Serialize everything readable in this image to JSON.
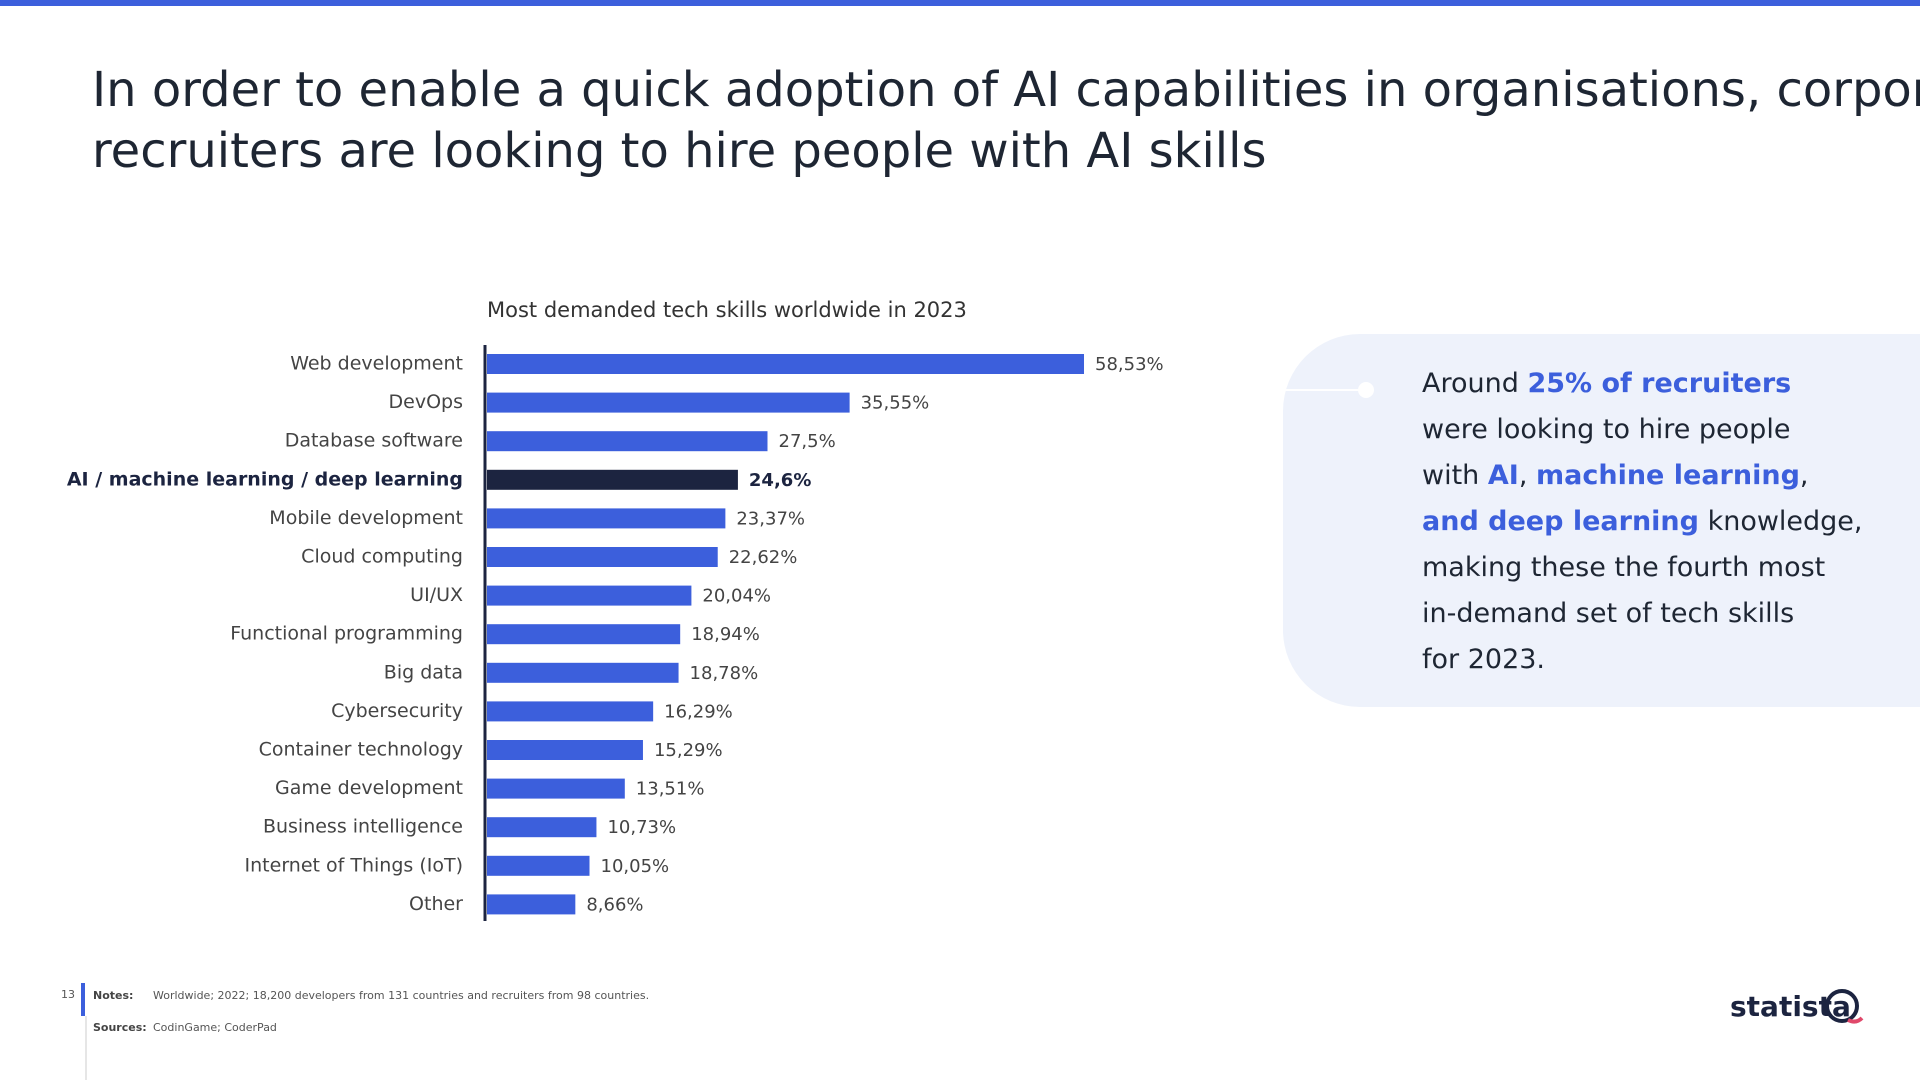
{
  "title_lines": [
    "In order to enable a quick adoption of AI capabilities in organisations, corporate",
    "recruiters are looking to hire people with AI skills"
  ],
  "chart_data": {
    "type": "hbar",
    "title": "Most demanded tech skills worldwide in 2023",
    "categories": [
      "Web development",
      "DevOps",
      "Database software",
      "AI / machine learning / deep learning",
      "Mobile development",
      "Cloud computing",
      "UI/UX",
      "Functional programming",
      "Big data",
      "Cybersecurity",
      "Container technology",
      "Game development",
      "Business intelligence",
      "Internet of Things (IoT)",
      "Other"
    ],
    "values": [
      58.53,
      35.55,
      27.5,
      24.6,
      23.37,
      22.62,
      20.04,
      18.94,
      18.78,
      16.29,
      15.29,
      13.51,
      10.73,
      10.05,
      8.66
    ],
    "value_labels": [
      "58,53%",
      "35,55%",
      "27,5%",
      "24,6%",
      "23,37%",
      "22,62%",
      "20,04%",
      "18,94%",
      "18,78%",
      "16,29%",
      "15,29%",
      "13,51%",
      "10,73%",
      "10,05%",
      "8,66%"
    ],
    "color": "#3c5fdc",
    "colors": [
      "#3c5fdc",
      "#3c5fdc",
      "#3c5fdc",
      "#1c2440",
      "#3c5fdc",
      "#3c5fdc",
      "#3c5fdc",
      "#3c5fdc",
      "#3c5fdc",
      "#3c5fdc",
      "#3c5fdc",
      "#3c5fdc",
      "#3c5fdc",
      "#3c5fdc",
      "#3c5fdc"
    ]
  },
  "callout": {
    "lines": [
      [
        {
          "text": "Around ",
          "highlight": false
        },
        {
          "text": "25% of recruiters",
          "highlight": true
        }
      ],
      [
        {
          "text": "were looking to hire people",
          "highlight": false
        }
      ],
      [
        {
          "text": "with ",
          "highlight": false
        },
        {
          "text": "AI",
          "highlight": true
        },
        {
          "text": ", ",
          "highlight": false
        },
        {
          "text": "machine learning",
          "highlight": true
        },
        {
          "text": ",",
          "highlight": false
        }
      ],
      [
        {
          "text": "and deep learning",
          "highlight": true
        },
        {
          "text": " knowledge,",
          "highlight": false
        }
      ],
      [
        {
          "text": "making these the fourth most",
          "highlight": false
        }
      ],
      [
        {
          "text": "in-demand set of tech skills",
          "highlight": false
        }
      ],
      [
        {
          "text": "for 2023.",
          "highlight": false
        }
      ]
    ]
  },
  "footer": {
    "page": "13",
    "notes_label": "Notes:",
    "notes": "Worldwide; 2022; 18,200 developers from 131 countries and recruiters from 98 countries.",
    "sources_label": "Sources:",
    "sources": "CodinGame; CoderPad",
    "logo": "statista"
  }
}
